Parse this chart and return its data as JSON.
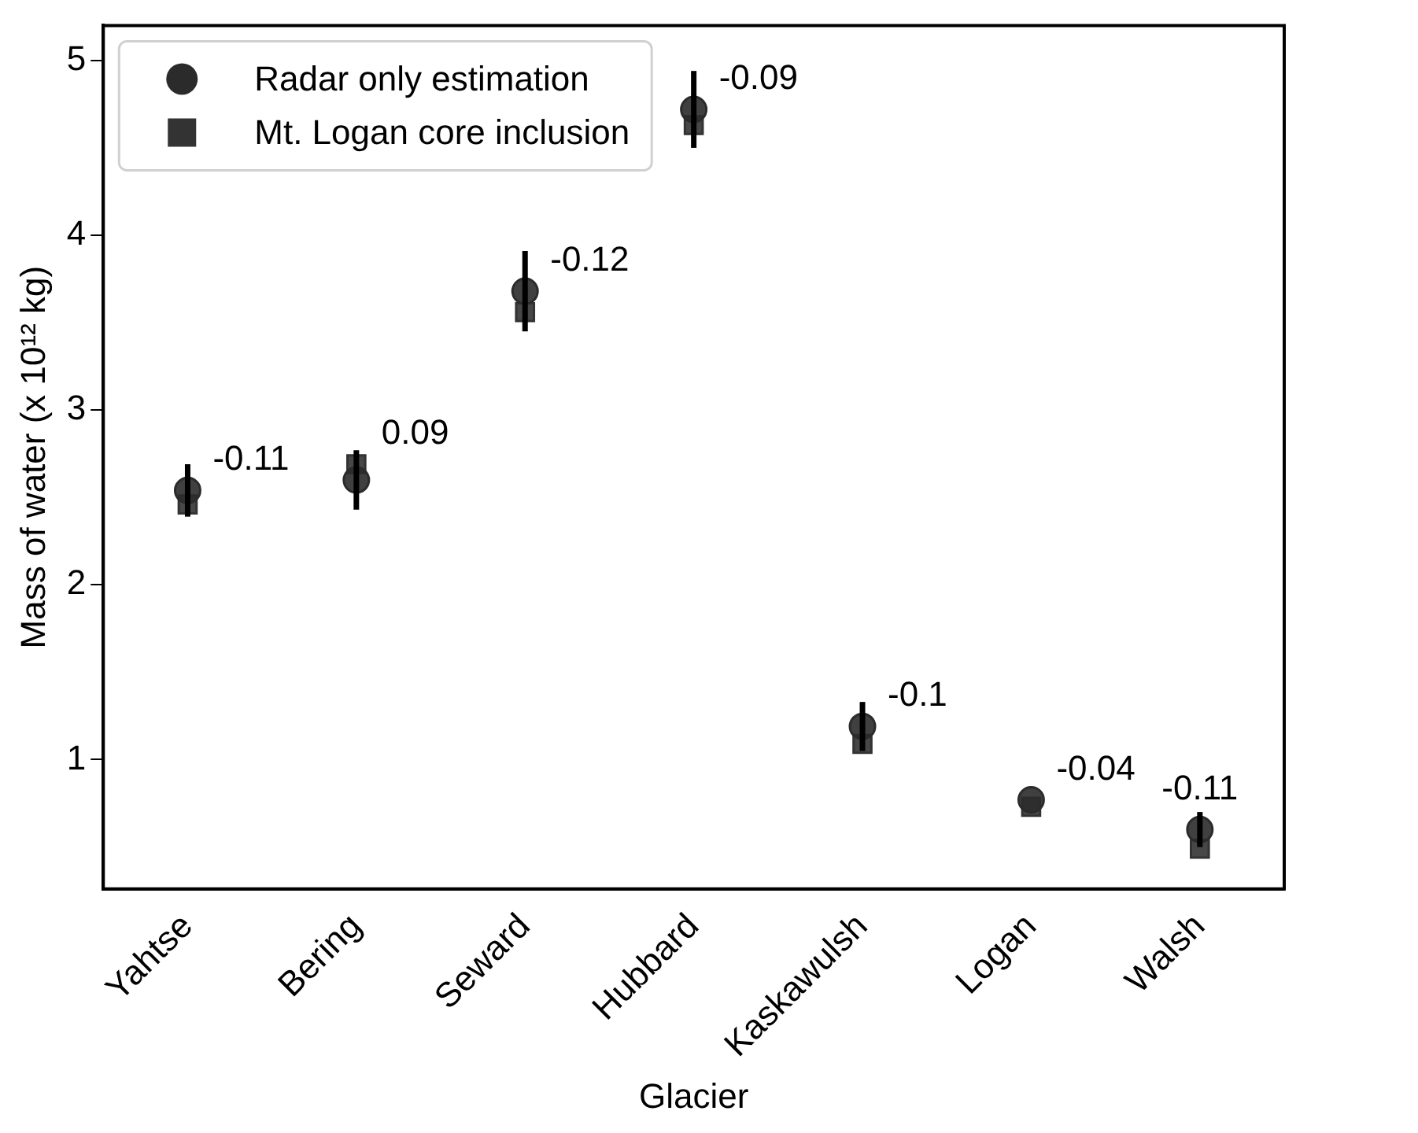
{
  "chart_data": {
    "type": "scatter",
    "xlabel": "Glacier",
    "ylabel": "Mass of water (x 10¹² kg)",
    "categories": [
      "Yahtse",
      "Bering",
      "Seward",
      "Hubbard",
      "Kaskawulsh",
      "Logan",
      "Walsh"
    ],
    "series": [
      {
        "name": "Radar only estimation",
        "color": "#2b2b2b",
        "marker": "circle",
        "values": [
          2.54,
          2.6,
          3.68,
          4.72,
          1.19,
          0.77,
          0.6
        ],
        "errors": [
          0.15,
          0.17,
          0.23,
          0.22,
          0.14,
          null,
          0.1
        ]
      },
      {
        "name": "Mt. Logan core inclusion",
        "color": "#333333",
        "marker": "square",
        "values": [
          2.46,
          2.69,
          3.56,
          4.63,
          1.09,
          0.73,
          0.49
        ]
      }
    ],
    "ylim": [
      0.26,
      5.2
    ],
    "yticks": [
      1,
      2,
      3,
      4,
      5
    ],
    "grid": false,
    "legend": "top left",
    "annotations": [
      {
        "text": "-0.11",
        "x": "Yahtse",
        "y": 2.54
      },
      {
        "text": "0.09",
        "x": "Bering",
        "y": 2.69
      },
      {
        "text": "-0.12",
        "x": "Seward",
        "y": 3.68
      },
      {
        "text": "-0.09",
        "x": "Hubbard",
        "y": 4.72
      },
      {
        "text": "-0.1",
        "x": "Kaskawulsh",
        "y": 1.19
      },
      {
        "text": "-0.04",
        "x": "Logan",
        "y": 0.77
      },
      {
        "text": "-0.11",
        "x": "Walsh",
        "y": 0.6
      }
    ]
  }
}
